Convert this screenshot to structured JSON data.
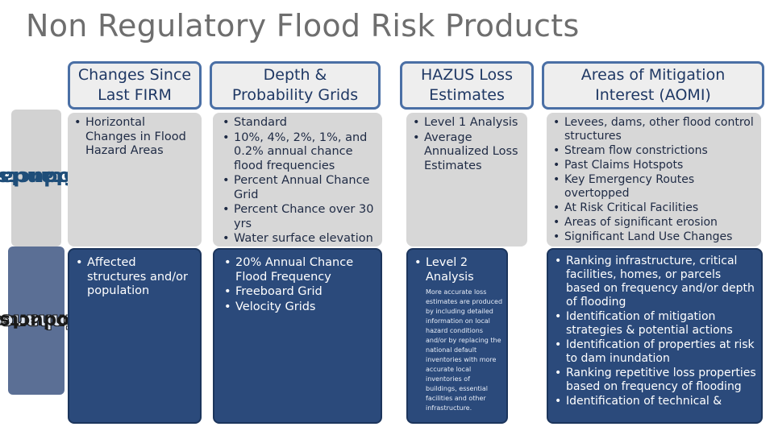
{
  "title": "Non Regulatory Flood Risk Products",
  "row_labels": {
    "standard": "Standard Products",
    "standard_line1": "Standard",
    "standard_line2": "Products",
    "enhanced": "Enhanced Products",
    "enhanced_line1": "Enhanced",
    "enhanced_line2": "Products"
  },
  "columns": [
    {
      "header_line1": "Changes Since",
      "header_line2": "Last FIRM",
      "standard": [
        "Horizontal Changes in Flood Hazard Areas"
      ],
      "enhanced": [
        "Affected structures and/or population"
      ]
    },
    {
      "header_line1": "Depth &",
      "header_line2": "Probability Grids",
      "standard": [
        "Standard",
        "10%, 4%, 2%, 1%, and 0.2% annual chance flood frequencies",
        "Percent Annual Chance Grid",
        "Percent Chance over 30 yrs",
        "Water surface elevation"
      ],
      "enhanced": [
        "20% Annual Chance Flood Frequency",
        "Freeboard Grid",
        "Velocity Grids"
      ]
    },
    {
      "header_line1": "HAZUS Loss",
      "header_line2": "Estimates",
      "standard": [
        "Level 1 Analysis",
        "Average Annualized Loss Estimates"
      ],
      "enhanced": [
        "Level 2 Analysis"
      ],
      "enhanced_note": "More accurate loss estimates are produced by including detailed information on local hazard conditions and/or by replacing the national default inventories with more accurate local inventories of buildings, essential facilities and other infrastructure."
    },
    {
      "header_line1": "Areas of Mitigation",
      "header_line2": "Interest (AOMI)",
      "standard": [
        "Levees, dams, other flood control structures",
        "Stream flow constrictions",
        "Past Claims Hotspots",
        "Key Emergency Routes overtopped",
        "At Risk Critical Facilities",
        "Areas of significant erosion",
        "Significant Land Use Changes"
      ],
      "enhanced": [
        "Ranking infrastructure, critical facilities, homes, or parcels based on frequency and/or depth of flooding",
        "Identification of mitigation strategies & potential actions",
        "Identification of properties at risk to dam inundation",
        "Ranking repetitive loss properties based on frequency of flooding",
        "Identification of technical &"
      ]
    }
  ]
}
